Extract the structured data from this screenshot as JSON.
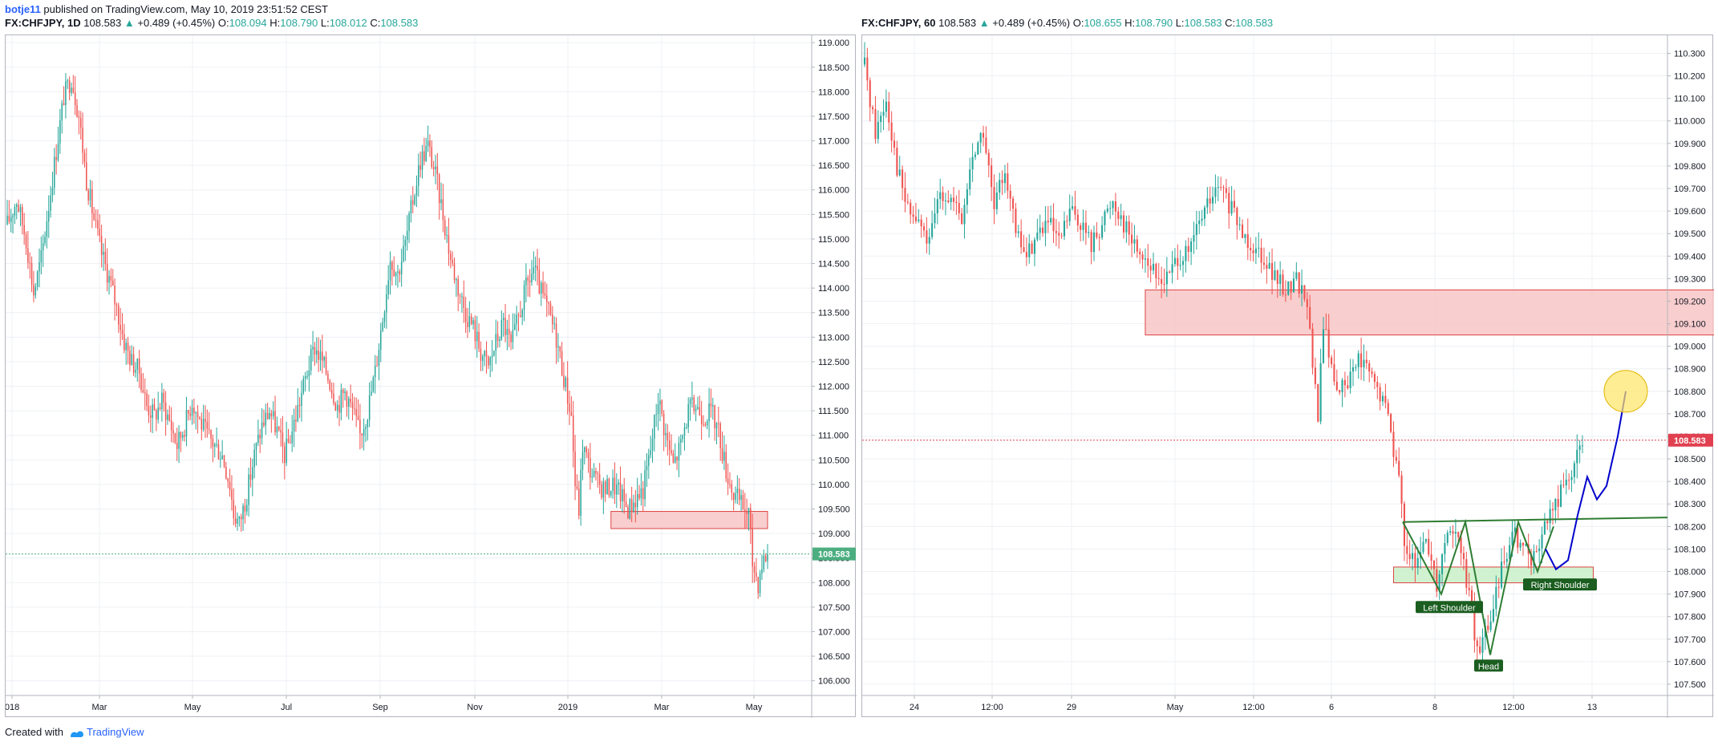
{
  "header": {
    "author": "botje11",
    "published_text": " published on TradingView.com, May 10, 2019 23:51:52 CEST"
  },
  "left_header": {
    "symbol": "FX:CHFJPY, 1D",
    "last": "108.583",
    "arrow": "▲",
    "change": "+0.489 (+0.45%)",
    "o_label": "O:",
    "o_val": "108.094",
    "h_label": "H:",
    "h_val": "108.790",
    "l_label": "L:",
    "l_val": "108.012",
    "c_label": "C:",
    "c_val": "108.583"
  },
  "right_header": {
    "symbol": "FX:CHFJPY, 60",
    "last": "108.583",
    "arrow": "▲",
    "change": "+0.489 (+0.45%)",
    "o_label": "O:",
    "o_val": "108.655",
    "h_label": "H:",
    "h_val": "108.790",
    "l_label": "L:",
    "l_val": "108.583",
    "c_label": "C:",
    "c_val": "108.583"
  },
  "footer": {
    "created_with": "Created with",
    "brand": "TradingView"
  },
  "colors": {
    "up": "#26a69a",
    "down": "#ef5350",
    "zone_red": "#f8c6c6",
    "zone_green": "#c8f0c8",
    "price_tag_left": "#4cae80",
    "price_tag_right": "#e04050",
    "curve": "#0000cc",
    "target": "#ffe666",
    "neckline": "#2e7d32"
  },
  "chart_data": [
    {
      "type": "candlestick",
      "symbol": "FX:CHFJPY",
      "interval": "1D",
      "ylim": [
        105.7,
        119.15
      ],
      "y_ticks": [
        "119.000",
        "118.500",
        "118.000",
        "117.500",
        "117.000",
        "116.500",
        "116.000",
        "115.500",
        "115.000",
        "114.500",
        "114.000",
        "113.500",
        "113.000",
        "112.500",
        "112.000",
        "111.500",
        "111.000",
        "110.500",
        "110.000",
        "109.500",
        "109.000",
        "108.500",
        "108.000",
        "107.500",
        "107.000",
        "106.500",
        "106.000"
      ],
      "x_ticks": [
        "018",
        "Mar",
        "May",
        "Jul",
        "Sep",
        "Nov",
        "2019",
        "Mar",
        "May"
      ],
      "last_price": "108.583",
      "path": [
        [
          0,
          115.3
        ],
        [
          5,
          115.8
        ],
        [
          10,
          115.0
        ],
        [
          14,
          113.9
        ],
        [
          18,
          114.6
        ],
        [
          22,
          115.7
        ],
        [
          26,
          116.8
        ],
        [
          30,
          117.9
        ],
        [
          34,
          118.3
        ],
        [
          38,
          117.5
        ],
        [
          42,
          116.2
        ],
        [
          46,
          115.4
        ],
        [
          50,
          114.7
        ],
        [
          54,
          114.2
        ],
        [
          58,
          113.6
        ],
        [
          62,
          112.9
        ],
        [
          66,
          112.5
        ],
        [
          70,
          112.3
        ],
        [
          74,
          111.6
        ],
        [
          78,
          111.4
        ],
        [
          82,
          111.7
        ],
        [
          86,
          111.3
        ],
        [
          90,
          110.8
        ],
        [
          94,
          111.2
        ],
        [
          98,
          111.7
        ],
        [
          102,
          111.3
        ],
        [
          106,
          111.0
        ],
        [
          110,
          110.8
        ],
        [
          114,
          110.6
        ],
        [
          118,
          110.0
        ],
        [
          120,
          109.4
        ],
        [
          123,
          109.2
        ],
        [
          127,
          109.8
        ],
        [
          131,
          110.6
        ],
        [
          135,
          111.2
        ],
        [
          139,
          111.5
        ],
        [
          143,
          111.1
        ],
        [
          147,
          110.6
        ],
        [
          151,
          111.1
        ],
        [
          155,
          111.7
        ],
        [
          159,
          112.3
        ],
        [
          163,
          112.8
        ],
        [
          167,
          112.5
        ],
        [
          171,
          112.1
        ],
        [
          175,
          111.6
        ],
        [
          179,
          111.9
        ],
        [
          183,
          111.5
        ],
        [
          187,
          111.0
        ],
        [
          191,
          111.5
        ],
        [
          195,
          112.3
        ],
        [
          199,
          113.4
        ],
        [
          203,
          114.6
        ],
        [
          207,
          114.3
        ],
        [
          211,
          114.9
        ],
        [
          215,
          115.8
        ],
        [
          219,
          116.6
        ],
        [
          223,
          116.9
        ],
        [
          227,
          116.3
        ],
        [
          231,
          115.5
        ],
        [
          235,
          114.6
        ],
        [
          239,
          114.0
        ],
        [
          243,
          113.5
        ],
        [
          247,
          113.2
        ],
        [
          251,
          112.7
        ],
        [
          255,
          112.4
        ],
        [
          259,
          112.9
        ],
        [
          263,
          113.3
        ],
        [
          267,
          112.8
        ],
        [
          271,
          113.4
        ],
        [
          275,
          114.0
        ],
        [
          279,
          114.4
        ],
        [
          283,
          113.9
        ],
        [
          287,
          113.5
        ],
        [
          291,
          113.0
        ],
        [
          295,
          112.2
        ],
        [
          299,
          111.4
        ],
        [
          301,
          110.0
        ],
        [
          303,
          109.5
        ],
        [
          305,
          110.8
        ],
        [
          309,
          110.3
        ],
        [
          313,
          110.0
        ],
        [
          317,
          109.9
        ],
        [
          321,
          110.0
        ],
        [
          325,
          109.8
        ],
        [
          329,
          109.5
        ],
        [
          333,
          109.7
        ],
        [
          337,
          109.9
        ],
        [
          341,
          110.7
        ],
        [
          345,
          111.8
        ],
        [
          349,
          111.0
        ],
        [
          353,
          110.4
        ],
        [
          357,
          110.8
        ],
        [
          361,
          111.5
        ],
        [
          365,
          111.6
        ],
        [
          369,
          111.4
        ],
        [
          373,
          111.5
        ],
        [
          377,
          111.1
        ],
        [
          381,
          110.3
        ],
        [
          385,
          109.8
        ],
        [
          389,
          109.6
        ],
        [
          393,
          109.4
        ],
        [
          395,
          108.4
        ],
        [
          398,
          108.0
        ],
        [
          400,
          108.4
        ],
        [
          403,
          108.6
        ]
      ],
      "zones": [
        {
          "from": 109.1,
          "to": 109.45,
          "start_index": 320,
          "end_index": 403,
          "color": "#f8c6c6"
        }
      ]
    },
    {
      "type": "candlestick",
      "symbol": "FX:CHFJPY",
      "interval": "60",
      "ylim": [
        107.45,
        110.38
      ],
      "y_ticks": [
        "110.300",
        "110.200",
        "110.100",
        "110.000",
        "109.900",
        "109.800",
        "109.700",
        "109.600",
        "109.500",
        "109.400",
        "109.300",
        "109.200",
        "109.100",
        "109.000",
        "108.900",
        "108.800",
        "108.700",
        "108.600",
        "108.500",
        "108.400",
        "108.300",
        "108.200",
        "108.100",
        "108.000",
        "107.900",
        "107.800",
        "107.700",
        "107.600",
        "107.500"
      ],
      "x_ticks": [
        "24",
        "12:00",
        "29",
        "May",
        "12:00",
        "6",
        "8",
        "12:00",
        "13"
      ],
      "last_price": "108.583",
      "path": [
        [
          0,
          110.25
        ],
        [
          4,
          109.95
        ],
        [
          8,
          110.1
        ],
        [
          12,
          109.8
        ],
        [
          16,
          109.6
        ],
        [
          20,
          109.55
        ],
        [
          24,
          109.45
        ],
        [
          28,
          109.7
        ],
        [
          32,
          109.65
        ],
        [
          36,
          109.55
        ],
        [
          40,
          109.85
        ],
        [
          44,
          109.95
        ],
        [
          48,
          109.6
        ],
        [
          52,
          109.8
        ],
        [
          56,
          109.5
        ],
        [
          60,
          109.4
        ],
        [
          64,
          109.5
        ],
        [
          68,
          109.55
        ],
        [
          72,
          109.45
        ],
        [
          76,
          109.6
        ],
        [
          80,
          109.55
        ],
        [
          84,
          109.45
        ],
        [
          88,
          109.55
        ],
        [
          92,
          109.65
        ],
        [
          96,
          109.55
        ],
        [
          100,
          109.45
        ],
        [
          104,
          109.4
        ],
        [
          108,
          109.3
        ],
        [
          112,
          109.3
        ],
        [
          116,
          109.4
        ],
        [
          120,
          109.4
        ],
        [
          124,
          109.55
        ],
        [
          128,
          109.65
        ],
        [
          132,
          109.7
        ],
        [
          136,
          109.6
        ],
        [
          140,
          109.5
        ],
        [
          144,
          109.45
        ],
        [
          148,
          109.4
        ],
        [
          152,
          109.3
        ],
        [
          156,
          109.25
        ],
        [
          160,
          109.3
        ],
        [
          164,
          109.2
        ],
        [
          166,
          108.9
        ],
        [
          168,
          108.7
        ],
        [
          170,
          109.1
        ],
        [
          174,
          108.85
        ],
        [
          178,
          108.8
        ],
        [
          182,
          108.95
        ],
        [
          186,
          108.9
        ],
        [
          190,
          108.8
        ],
        [
          194,
          108.7
        ],
        [
          198,
          108.4
        ],
        [
          200,
          108.15
        ],
        [
          204,
          108.0
        ],
        [
          208,
          108.15
        ],
        [
          212,
          107.95
        ],
        [
          216,
          108.2
        ],
        [
          220,
          108.15
        ],
        [
          224,
          107.9
        ],
        [
          226,
          107.7
        ],
        [
          228,
          107.65
        ],
        [
          232,
          107.8
        ],
        [
          236,
          108.0
        ],
        [
          240,
          108.2
        ],
        [
          244,
          108.1
        ],
        [
          248,
          108.05
        ],
        [
          252,
          108.2
        ],
        [
          256,
          108.3
        ],
        [
          260,
          108.4
        ],
        [
          264,
          108.5
        ],
        [
          266,
          108.58
        ]
      ],
      "zones": [
        {
          "from": 109.05,
          "to": 109.25,
          "start_index": 104,
          "end_index": 320,
          "color": "#f8c6c6"
        },
        {
          "from": 107.95,
          "to": 108.02,
          "start_index": 196,
          "end_index": 270,
          "color": "#c8f0c8"
        }
      ],
      "annotations": [
        "Left Shoulder",
        "Head",
        "Right Shoulder"
      ],
      "projection": [
        108.1,
        108.05,
        108.25,
        108.4,
        108.3,
        108.5,
        108.8
      ]
    }
  ]
}
